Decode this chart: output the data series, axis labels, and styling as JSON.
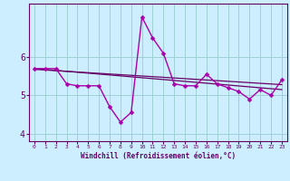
{
  "x": [
    0,
    1,
    2,
    3,
    4,
    5,
    6,
    7,
    8,
    9,
    10,
    11,
    12,
    13,
    14,
    15,
    16,
    17,
    18,
    19,
    20,
    21,
    22,
    23
  ],
  "y_main": [
    5.7,
    5.7,
    5.7,
    5.3,
    5.25,
    5.25,
    5.25,
    4.7,
    4.3,
    4.55,
    7.05,
    6.5,
    6.1,
    5.3,
    5.25,
    5.25,
    5.55,
    5.3,
    5.2,
    5.1,
    4.9,
    5.15,
    5.0,
    5.4
  ],
  "trend1_x": [
    0,
    23
  ],
  "trend1_y": [
    5.7,
    5.15
  ],
  "trend2_x": [
    0,
    23
  ],
  "trend2_y": [
    5.68,
    5.28
  ],
  "xlabel": "Windchill (Refroidissement éolien,°C)",
  "xticks": [
    0,
    1,
    2,
    3,
    4,
    5,
    6,
    7,
    8,
    9,
    10,
    11,
    12,
    13,
    14,
    15,
    16,
    17,
    18,
    19,
    20,
    21,
    22,
    23
  ],
  "yticks": [
    4,
    5,
    6
  ],
  "ylim": [
    3.8,
    7.4
  ],
  "xlim": [
    -0.5,
    23.5
  ],
  "line_color": "#aa00aa",
  "trend_color": "#660066",
  "bg_color": "#cceeff",
  "grid_color": "#99cccc",
  "axes_color": "#660066",
  "marker": "D",
  "marker_size": 2.5,
  "line_width": 1.0
}
